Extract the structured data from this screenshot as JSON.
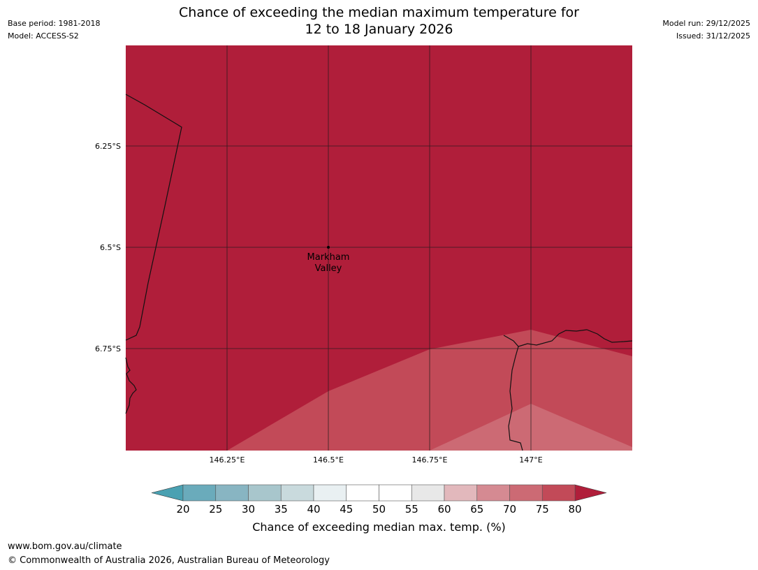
{
  "header": {
    "base_period": "Base period: 1981-2018",
    "model": "Model: ACCESS-S2",
    "model_run": "Model run: 29/12/2025",
    "issued": "Issued: 31/12/2025",
    "title_line1": "Chance of exceeding the median maximum temperature for",
    "title_line2": "12 to 18 January 2026"
  },
  "map": {
    "lon_range": [
      146.0,
      147.25
    ],
    "lat_range": [
      -6.0,
      -7.0
    ],
    "lat_ticks": [
      {
        "value": -6.25,
        "label": "6.25°S"
      },
      {
        "value": -6.5,
        "label": "6.5°S"
      },
      {
        "value": -6.75,
        "label": "6.75°S"
      }
    ],
    "lon_ticks": [
      {
        "value": 146.25,
        "label": "146.25°E"
      },
      {
        "value": 146.5,
        "label": "146.5°E"
      },
      {
        "value": 146.75,
        "label": "146.75°E"
      },
      {
        "value": 147.0,
        "label": "147°E"
      }
    ],
    "place": {
      "name_line1": "Markham",
      "name_line2": "Valley",
      "lon": 146.5,
      "lat": -6.5
    },
    "colors": {
      "band_80": "#b01e3a",
      "band_75": "#c24a58",
      "band_70": "#cc6a74"
    }
  },
  "colorbar": {
    "labels": [
      "20",
      "25",
      "30",
      "35",
      "40",
      "45",
      "50",
      "55",
      "60",
      "65",
      "70",
      "75",
      "80"
    ],
    "colors": [
      "#6aabbb",
      "#88b5c2",
      "#a8c6cc",
      "#c9dadd",
      "#e9f0f2",
      "#ffffff",
      "#ffffff",
      "#e8e8e8",
      "#e2b8bc",
      "#d58a92",
      "#cc6a74",
      "#c24a58"
    ],
    "low_color": "#4aa1b2",
    "high_color": "#b01e3a",
    "title": "Chance of exceeding median max. temp. (%)"
  },
  "footer": {
    "url": "www.bom.gov.au/climate",
    "copyright": "© Commonwealth of Australia 2026, Australian Bureau of Meteorology"
  }
}
